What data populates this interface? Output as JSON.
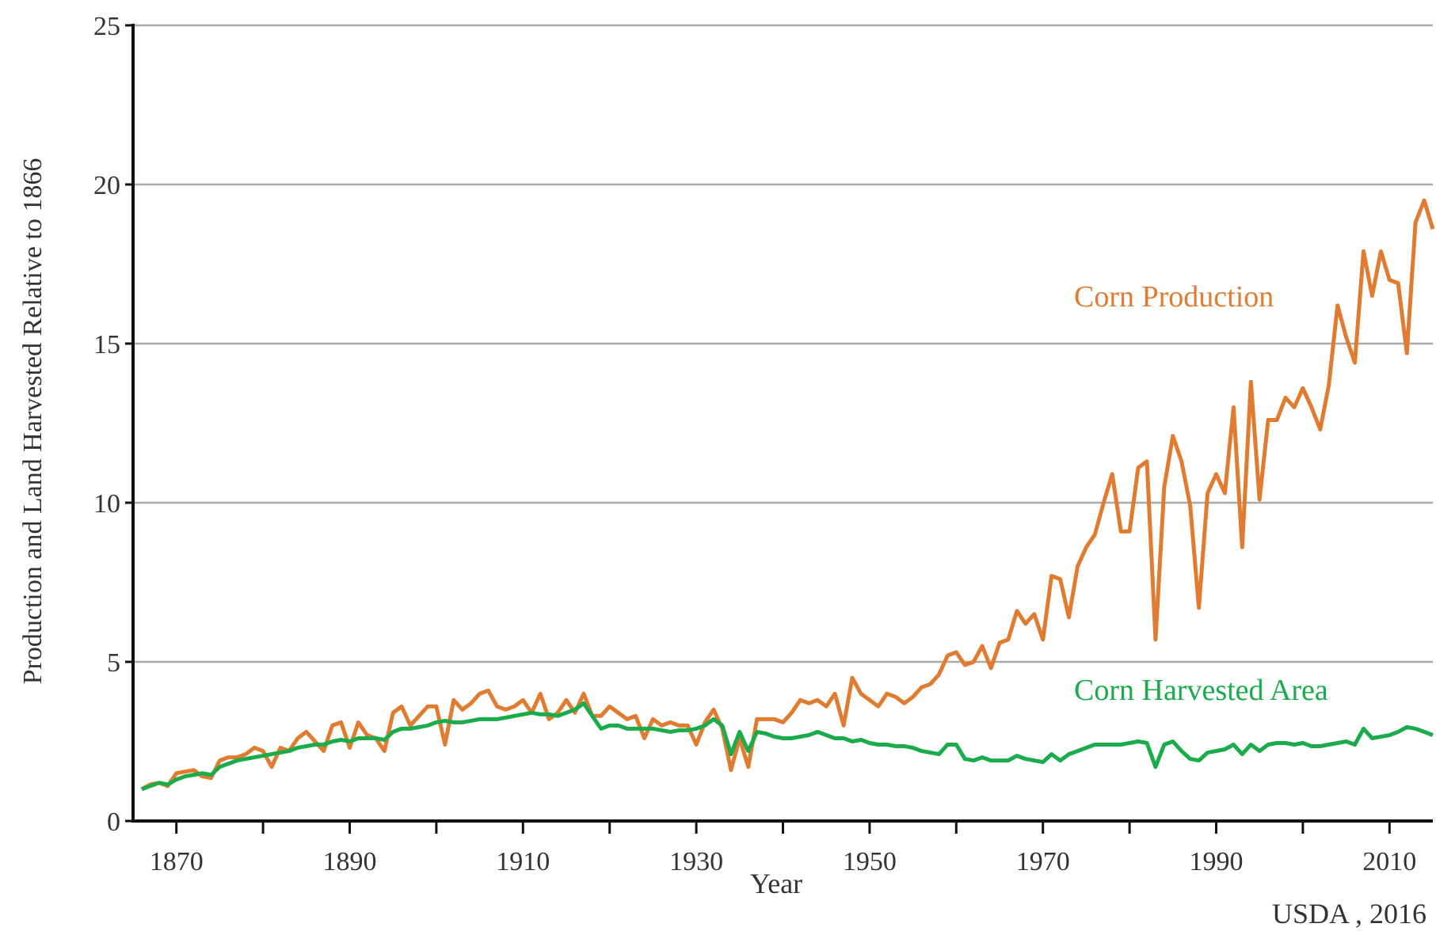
{
  "chart_data": {
    "type": "line",
    "xlabel": "Year",
    "ylabel": "Production and Land Harvested Relative to 1866",
    "source": "USDA , 2016",
    "xlim": [
      1865,
      2015
    ],
    "xticks": [
      1870,
      1890,
      1910,
      1930,
      1950,
      1970,
      1990,
      2010
    ],
    "xticks_minor": [
      1880,
      1900,
      1920,
      1940,
      1960,
      1980,
      2000
    ],
    "ylim": [
      0,
      25
    ],
    "yticks": [
      0,
      5,
      10,
      15,
      20,
      25
    ],
    "grid": true,
    "x": [
      1866,
      1867,
      1868,
      1869,
      1870,
      1871,
      1872,
      1873,
      1874,
      1875,
      1876,
      1877,
      1878,
      1879,
      1880,
      1881,
      1882,
      1883,
      1884,
      1885,
      1886,
      1887,
      1888,
      1889,
      1890,
      1891,
      1892,
      1893,
      1894,
      1895,
      1896,
      1897,
      1898,
      1899,
      1900,
      1901,
      1902,
      1903,
      1904,
      1905,
      1906,
      1907,
      1908,
      1909,
      1910,
      1911,
      1912,
      1913,
      1914,
      1915,
      1916,
      1917,
      1918,
      1919,
      1920,
      1921,
      1922,
      1923,
      1924,
      1925,
      1926,
      1927,
      1928,
      1929,
      1930,
      1931,
      1932,
      1933,
      1934,
      1935,
      1936,
      1937,
      1938,
      1939,
      1940,
      1941,
      1942,
      1943,
      1944,
      1945,
      1946,
      1947,
      1948,
      1949,
      1950,
      1951,
      1952,
      1953,
      1954,
      1955,
      1956,
      1957,
      1958,
      1959,
      1960,
      1961,
      1962,
      1963,
      1964,
      1965,
      1966,
      1967,
      1968,
      1969,
      1970,
      1971,
      1972,
      1973,
      1974,
      1975,
      1976,
      1977,
      1978,
      1979,
      1980,
      1981,
      1982,
      1983,
      1984,
      1985,
      1986,
      1987,
      1988,
      1989,
      1990,
      1991,
      1992,
      1993,
      1994,
      1995,
      1996,
      1997,
      1998,
      1999,
      2000,
      2001,
      2002,
      2003,
      2004,
      2005,
      2006,
      2007,
      2008,
      2009,
      2010,
      2011,
      2012,
      2013,
      2014,
      2015
    ],
    "series": [
      {
        "name": "Corn Production",
        "color": "#e07b30",
        "values": [
          1.0,
          1.15,
          1.2,
          1.1,
          1.5,
          1.55,
          1.6,
          1.4,
          1.35,
          1.9,
          2.0,
          2.0,
          2.1,
          2.3,
          2.2,
          1.7,
          2.3,
          2.2,
          2.6,
          2.8,
          2.5,
          2.2,
          3.0,
          3.1,
          2.3,
          3.1,
          2.7,
          2.6,
          2.2,
          3.4,
          3.6,
          3.0,
          3.3,
          3.6,
          3.6,
          2.4,
          3.8,
          3.5,
          3.7,
          4.0,
          4.1,
          3.6,
          3.5,
          3.6,
          3.8,
          3.4,
          4.0,
          3.2,
          3.4,
          3.8,
          3.4,
          4.0,
          3.3,
          3.3,
          3.6,
          3.4,
          3.2,
          3.3,
          2.6,
          3.2,
          3.0,
          3.1,
          3.0,
          3.0,
          2.4,
          3.1,
          3.5,
          2.9,
          1.6,
          2.6,
          1.7,
          3.2,
          3.2,
          3.2,
          3.1,
          3.4,
          3.8,
          3.7,
          3.8,
          3.6,
          4.0,
          3.0,
          4.5,
          4.0,
          3.8,
          3.6,
          4.0,
          3.9,
          3.7,
          3.9,
          4.2,
          4.3,
          4.6,
          5.2,
          5.3,
          4.9,
          5.0,
          5.5,
          4.8,
          5.6,
          5.7,
          6.6,
          6.2,
          6.5,
          5.7,
          7.7,
          7.6,
          6.4,
          8.0,
          8.6,
          9.0,
          10.0,
          10.9,
          9.1,
          9.1,
          11.1,
          11.3,
          5.7,
          10.5,
          12.1,
          11.3,
          9.9,
          6.7,
          10.3,
          10.9,
          10.3,
          13.0,
          8.6,
          13.8,
          10.1,
          12.6,
          12.6,
          13.3,
          13.0,
          13.6,
          13.0,
          12.3,
          13.7,
          16.2,
          15.2,
          14.4,
          17.9,
          16.5,
          17.9,
          17.0,
          16.9,
          14.7,
          18.8,
          19.5,
          18.6
        ]
      },
      {
        "name": "Corn Harvested Area",
        "color": "#1aab4a",
        "values": [
          1.0,
          1.1,
          1.2,
          1.15,
          1.3,
          1.4,
          1.45,
          1.5,
          1.45,
          1.7,
          1.8,
          1.9,
          1.95,
          2.0,
          2.05,
          2.1,
          2.15,
          2.2,
          2.3,
          2.35,
          2.4,
          2.4,
          2.5,
          2.55,
          2.5,
          2.6,
          2.6,
          2.6,
          2.55,
          2.8,
          2.9,
          2.9,
          2.95,
          3.0,
          3.1,
          3.15,
          3.1,
          3.1,
          3.15,
          3.2,
          3.2,
          3.2,
          3.25,
          3.3,
          3.35,
          3.4,
          3.35,
          3.35,
          3.3,
          3.4,
          3.5,
          3.7,
          3.3,
          2.9,
          3.0,
          3.0,
          2.9,
          2.9,
          2.9,
          2.9,
          2.85,
          2.8,
          2.85,
          2.85,
          2.9,
          3.0,
          3.2,
          3.0,
          2.1,
          2.8,
          2.2,
          2.8,
          2.75,
          2.65,
          2.6,
          2.6,
          2.65,
          2.7,
          2.8,
          2.7,
          2.6,
          2.6,
          2.5,
          2.55,
          2.45,
          2.4,
          2.4,
          2.35,
          2.35,
          2.3,
          2.2,
          2.15,
          2.1,
          2.4,
          2.4,
          1.95,
          1.9,
          2.0,
          1.9,
          1.9,
          1.9,
          2.05,
          1.95,
          1.9,
          1.85,
          2.1,
          1.9,
          2.1,
          2.2,
          2.3,
          2.4,
          2.4,
          2.4,
          2.4,
          2.45,
          2.5,
          2.45,
          1.7,
          2.4,
          2.5,
          2.2,
          1.95,
          1.9,
          2.15,
          2.2,
          2.25,
          2.4,
          2.1,
          2.4,
          2.2,
          2.4,
          2.45,
          2.45,
          2.4,
          2.45,
          2.35,
          2.35,
          2.4,
          2.45,
          2.5,
          2.4,
          2.9,
          2.6,
          2.65,
          2.7,
          2.8,
          2.95,
          2.9,
          2.8,
          2.7
        ]
      }
    ]
  }
}
